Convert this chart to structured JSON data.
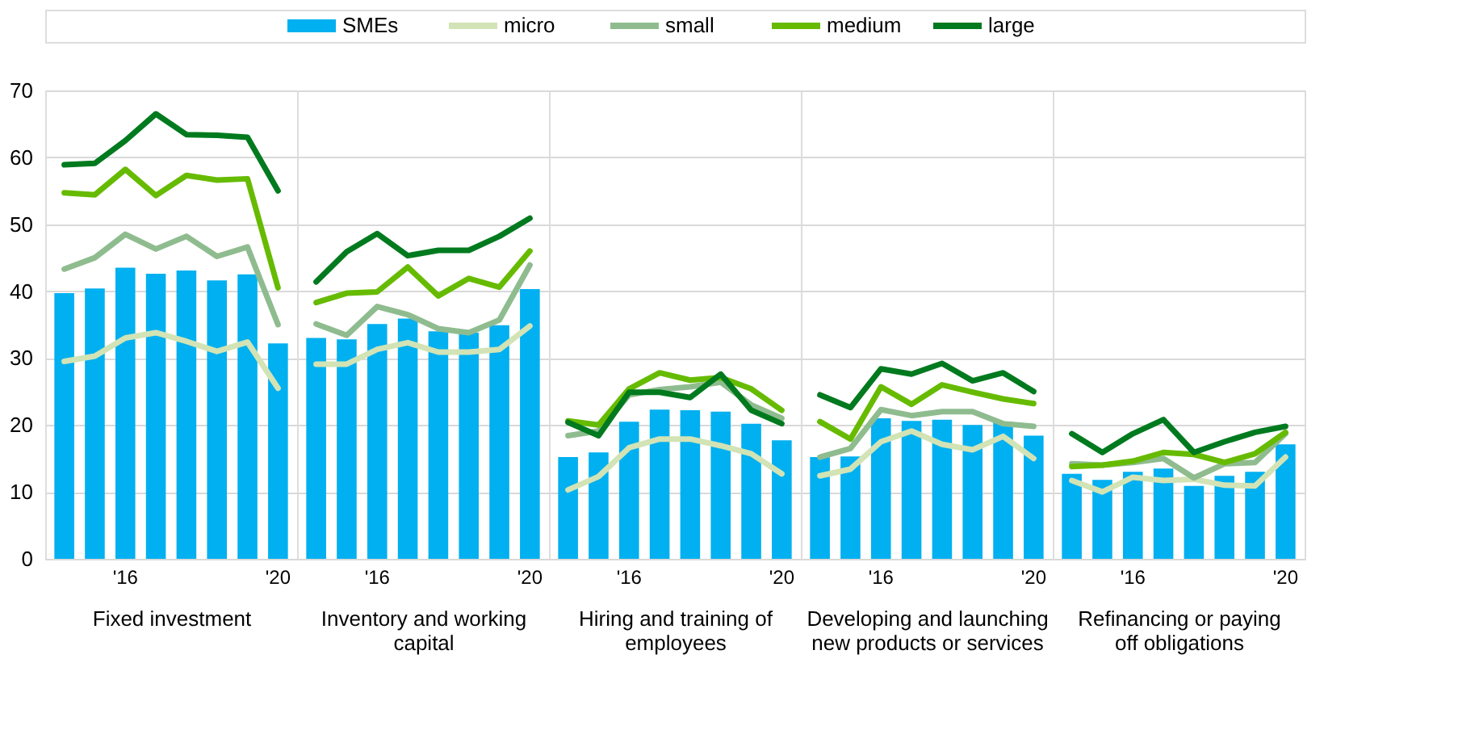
{
  "chart_data": [
    {
      "type": "bar",
      "xlabel": "Fixed investment",
      "categories": [
        null,
        null,
        "'16",
        null,
        null,
        null,
        null,
        "'20"
      ],
      "ylim": [
        0,
        70
      ],
      "yticks": [
        0,
        10,
        20,
        30,
        40,
        50,
        60,
        70
      ],
      "grid": "y",
      "legend": "top",
      "marker": "none",
      "line_style": "solid",
      "series": [
        {
          "name": "SMEs",
          "type": "bar",
          "color": "#00b0f0",
          "values": [
            39.7,
            40.4,
            43.5,
            42.6,
            43.1,
            41.6,
            42.5,
            32.2
          ]
        },
        {
          "name": "micro",
          "type": "line",
          "color": "#d2e3b5",
          "values": [
            29.5,
            30.3,
            33.0,
            33.8,
            32.5,
            31.0,
            32.4,
            25.5
          ]
        },
        {
          "name": "small",
          "type": "line",
          "color": "#8fbc8f",
          "values": [
            43.3,
            45.0,
            48.5,
            46.3,
            48.2,
            45.2,
            46.6,
            35.0
          ]
        },
        {
          "name": "medium",
          "type": "line",
          "color": "#66bb00",
          "values": [
            54.7,
            54.4,
            58.2,
            54.3,
            57.3,
            56.6,
            56.8,
            40.5
          ]
        },
        {
          "name": "large",
          "type": "line",
          "color": "#007a1e",
          "values": [
            58.9,
            59.1,
            62.5,
            66.5,
            63.4,
            63.3,
            63.0,
            55.0
          ]
        }
      ]
    },
    {
      "type": "bar",
      "xlabel": "Inventory and working capital",
      "categories": [
        null,
        null,
        "'16",
        null,
        null,
        null,
        null,
        "'20"
      ],
      "ylim": [
        0,
        70
      ],
      "yticks": [
        0,
        10,
        20,
        30,
        40,
        50,
        60,
        70
      ],
      "grid": "y",
      "tick_labels": "x",
      "marker": "none",
      "line_style": "solid",
      "series": [
        {
          "name": "SMEs",
          "type": "bar",
          "color": "#00b0f0",
          "values": [
            33.0,
            32.8,
            35.1,
            35.9,
            34.0,
            33.8,
            34.9,
            40.3
          ]
        },
        {
          "name": "micro",
          "type": "line",
          "color": "#d2e3b5",
          "values": [
            29.1,
            29.1,
            31.3,
            32.3,
            30.9,
            30.9,
            31.3,
            34.8
          ]
        },
        {
          "name": "small",
          "type": "line",
          "color": "#8fbc8f",
          "values": [
            35.1,
            33.4,
            37.7,
            36.5,
            34.4,
            33.8,
            35.7,
            43.9
          ]
        },
        {
          "name": "medium",
          "type": "line",
          "color": "#66bb00",
          "values": [
            38.3,
            39.7,
            39.9,
            43.6,
            39.3,
            41.9,
            40.6,
            46.0
          ]
        },
        {
          "name": "large",
          "type": "line",
          "color": "#007a1e",
          "values": [
            41.4,
            45.9,
            48.6,
            45.3,
            46.1,
            46.1,
            48.2,
            50.9
          ]
        }
      ]
    },
    {
      "type": "bar",
      "xlabel": "Hiring and training of employees",
      "categories": [
        null,
        null,
        "'16",
        null,
        null,
        null,
        null,
        "'20"
      ],
      "ylim": [
        0,
        70
      ],
      "yticks": [
        0,
        10,
        20,
        30,
        40,
        50,
        60,
        70
      ],
      "grid": "y",
      "tick_labels": "x",
      "marker": "none",
      "line_style": "solid",
      "series": [
        {
          "name": "SMEs",
          "type": "bar",
          "color": "#00b0f0",
          "values": [
            15.2,
            15.9,
            20.5,
            22.3,
            22.2,
            22.0,
            20.2,
            17.7
          ]
        },
        {
          "name": "micro",
          "type": "line",
          "color": "#d2e3b5",
          "values": [
            10.3,
            12.3,
            16.6,
            17.9,
            17.9,
            16.9,
            15.7,
            12.7
          ]
        },
        {
          "name": "small",
          "type": "line",
          "color": "#8fbc8f",
          "values": [
            18.4,
            19.1,
            24.5,
            25.3,
            25.7,
            26.4,
            23.0,
            21.0
          ]
        },
        {
          "name": "medium",
          "type": "line",
          "color": "#66bb00",
          "values": [
            20.6,
            20.0,
            25.4,
            27.8,
            26.7,
            27.1,
            25.4,
            22.2
          ]
        },
        {
          "name": "large",
          "type": "line",
          "color": "#007a1e",
          "values": [
            20.4,
            18.4,
            24.9,
            24.9,
            24.1,
            27.6,
            22.2,
            20.2
          ]
        }
      ]
    },
    {
      "type": "bar",
      "xlabel": "Developing and launching new products or services",
      "categories": [
        null,
        null,
        "'16",
        null,
        null,
        null,
        null,
        "'20"
      ],
      "ylim": [
        0,
        70
      ],
      "yticks": [
        0,
        10,
        20,
        30,
        40,
        50,
        60,
        70
      ],
      "grid": "y",
      "tick_labels": "x",
      "marker": "none",
      "line_style": "solid",
      "series": [
        {
          "name": "SMEs",
          "type": "bar",
          "color": "#00b0f0",
          "values": [
            15.2,
            15.3,
            21.0,
            20.6,
            20.8,
            20.0,
            20.5,
            18.4
          ]
        },
        {
          "name": "micro",
          "type": "line",
          "color": "#d2e3b5",
          "values": [
            12.4,
            13.4,
            17.5,
            19.1,
            17.1,
            16.3,
            18.3,
            15.0
          ]
        },
        {
          "name": "small",
          "type": "line",
          "color": "#8fbc8f",
          "values": [
            15.2,
            16.5,
            22.3,
            21.4,
            22.0,
            22.0,
            20.2,
            19.8
          ]
        },
        {
          "name": "medium",
          "type": "line",
          "color": "#66bb00",
          "values": [
            20.5,
            17.9,
            25.7,
            23.1,
            26.0,
            24.9,
            23.9,
            23.2
          ]
        },
        {
          "name": "large",
          "type": "line",
          "color": "#007a1e",
          "values": [
            24.5,
            22.6,
            28.4,
            27.6,
            29.2,
            26.6,
            27.8,
            25.0
          ]
        }
      ]
    },
    {
      "type": "bar",
      "xlabel": "Refinancing or paying off obligations",
      "categories": [
        null,
        null,
        "'16",
        null,
        null,
        null,
        null,
        "'20"
      ],
      "ylim": [
        0,
        70
      ],
      "yticks": [
        0,
        10,
        20,
        30,
        40,
        50,
        60,
        70
      ],
      "grid": "y",
      "tick_labels": "x",
      "marker": "none",
      "line_style": "solid",
      "series": [
        {
          "name": "SMEs",
          "type": "bar",
          "color": "#00b0f0",
          "values": [
            12.7,
            11.8,
            13.0,
            13.5,
            10.9,
            12.4,
            13.0,
            17.1
          ]
        },
        {
          "name": "micro",
          "type": "line",
          "color": "#d2e3b5",
          "values": [
            11.7,
            10.0,
            12.2,
            11.7,
            11.9,
            11.0,
            10.9,
            15.2
          ]
        },
        {
          "name": "small",
          "type": "line",
          "color": "#8fbc8f",
          "values": [
            14.2,
            14.0,
            14.4,
            15.0,
            12.1,
            14.2,
            14.4,
            18.7
          ]
        },
        {
          "name": "medium",
          "type": "line",
          "color": "#66bb00",
          "values": [
            13.8,
            14.0,
            14.6,
            15.9,
            15.6,
            14.4,
            15.7,
            18.9
          ]
        },
        {
          "name": "large",
          "type": "line",
          "color": "#007a1e",
          "values": [
            18.7,
            15.9,
            18.7,
            20.8,
            15.9,
            17.5,
            18.9,
            19.8
          ]
        }
      ]
    }
  ]
}
